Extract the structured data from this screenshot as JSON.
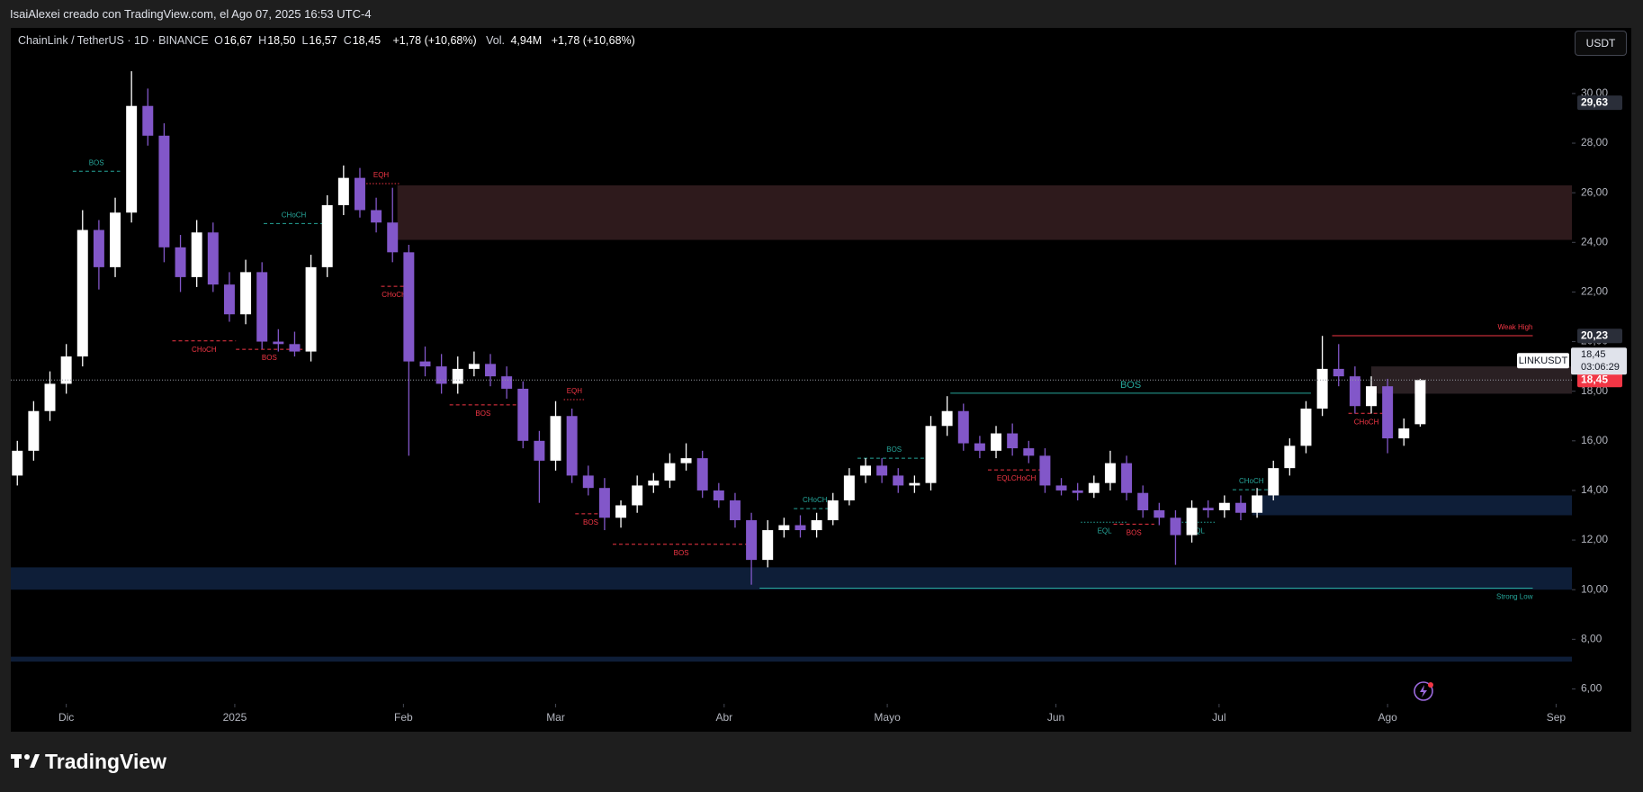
{
  "header": "IsaiAlexei creado con TradingView.com, el Ago 07, 2025 16:53 UTC-4",
  "legend": {
    "symbol": "ChainLink / TetherUS · 1D · BINANCE",
    "ohlc": [
      {
        "k": "O",
        "v": "16,67"
      },
      {
        "k": "H",
        "v": "18,50"
      },
      {
        "k": "L",
        "v": "16,57"
      },
      {
        "k": "C",
        "v": "18,45"
      }
    ],
    "change": "+1,78 (+10,68%)",
    "vol_label": "Vol.",
    "vol": "4,94M",
    "vol_change": "+1,78 (+10,68%)"
  },
  "currency_button": "USDT",
  "brand": "TradingView",
  "chart_data": {
    "type": "candlestick",
    "up_color": "#ffffff",
    "down_color": "#8257c9",
    "open": [
      14.6,
      15.6,
      17.2,
      18.3,
      19.4,
      24.5,
      23.0,
      25.2,
      29.5,
      28.3,
      23.8,
      22.6,
      24.4,
      22.3,
      21.1,
      22.8,
      20.0,
      19.9,
      19.6,
      23.0,
      25.5,
      26.6,
      25.3,
      24.8,
      23.6,
      19.2,
      19.0,
      18.3,
      18.9,
      19.1,
      18.6,
      18.1,
      16.0,
      15.2,
      17.0,
      14.6,
      14.1,
      12.9,
      13.4,
      14.2,
      14.4,
      15.1,
      15.3,
      14.0,
      13.6,
      12.8,
      11.2,
      12.4,
      12.6,
      12.4,
      12.8,
      13.6,
      14.6,
      15.0,
      14.6,
      14.2,
      14.3,
      16.6,
      17.2,
      15.9,
      15.6,
      16.3,
      15.7,
      15.4,
      14.2,
      14.0,
      13.9,
      14.3,
      15.1,
      13.9,
      13.2,
      12.9,
      12.2,
      13.3,
      13.2,
      13.5,
      13.1,
      13.8,
      14.9,
      15.8,
      17.3,
      18.9,
      18.6,
      17.4,
      18.2,
      16.1,
      16.67
    ],
    "high": [
      16.0,
      17.6,
      18.8,
      19.9,
      25.3,
      24.9,
      25.8,
      30.9,
      30.2,
      28.8,
      24.3,
      24.9,
      24.8,
      22.8,
      23.3,
      23.2,
      20.5,
      20.4,
      23.5,
      25.9,
      27.1,
      27.0,
      25.8,
      26.2,
      23.9,
      19.8,
      19.5,
      19.4,
      19.6,
      19.5,
      19.0,
      18.4,
      16.4,
      17.6,
      17.3,
      15.0,
      14.5,
      13.6,
      14.6,
      14.7,
      15.5,
      15.9,
      15.6,
      14.3,
      13.9,
      13.1,
      12.8,
      12.9,
      13.0,
      13.1,
      13.9,
      14.9,
      15.3,
      15.3,
      14.9,
      14.6,
      17.0,
      17.8,
      17.5,
      16.2,
      16.6,
      16.7,
      16.0,
      15.7,
      14.5,
      14.3,
      14.6,
      15.6,
      15.4,
      14.2,
      13.5,
      13.2,
      13.6,
      13.6,
      13.8,
      13.8,
      14.1,
      15.2,
      16.1,
      17.6,
      20.23,
      19.9,
      19.0,
      18.6,
      18.5,
      16.9,
      18.5
    ],
    "low": [
      14.2,
      15.2,
      16.8,
      17.9,
      19.0,
      22.1,
      22.6,
      24.8,
      27.9,
      23.2,
      22.0,
      22.2,
      22.0,
      20.8,
      20.7,
      19.7,
      19.6,
      19.4,
      19.2,
      22.6,
      25.1,
      25.0,
      24.4,
      23.2,
      15.4,
      18.6,
      17.9,
      17.9,
      18.6,
      18.2,
      17.7,
      15.7,
      13.5,
      14.8,
      14.3,
      13.8,
      12.4,
      12.5,
      13.1,
      13.9,
      14.1,
      14.8,
      13.7,
      13.3,
      12.5,
      10.2,
      10.9,
      12.1,
      12.1,
      12.1,
      12.6,
      13.4,
      14.3,
      14.3,
      13.9,
      13.9,
      14.0,
      16.2,
      15.6,
      15.3,
      15.3,
      15.4,
      15.1,
      13.9,
      13.8,
      13.6,
      13.7,
      14.0,
      13.6,
      12.9,
      12.6,
      11.0,
      11.9,
      12.9,
      12.9,
      12.8,
      12.9,
      13.6,
      14.6,
      15.5,
      17.0,
      18.2,
      17.1,
      17.1,
      15.5,
      15.8,
      16.57
    ],
    "close": [
      15.6,
      17.2,
      18.3,
      19.4,
      24.5,
      23.0,
      25.2,
      29.5,
      28.3,
      23.8,
      22.6,
      24.4,
      22.3,
      21.1,
      22.8,
      20.0,
      19.9,
      19.6,
      23.0,
      25.5,
      26.6,
      25.3,
      24.8,
      23.6,
      19.2,
      19.0,
      18.3,
      18.9,
      19.1,
      18.6,
      18.1,
      16.0,
      15.2,
      17.0,
      14.6,
      14.1,
      12.9,
      13.4,
      14.2,
      14.4,
      15.1,
      15.3,
      14.0,
      13.6,
      12.8,
      11.2,
      12.4,
      12.6,
      12.4,
      12.8,
      13.6,
      14.6,
      15.0,
      14.6,
      14.2,
      14.3,
      16.6,
      17.2,
      15.9,
      15.6,
      16.3,
      15.7,
      15.4,
      14.2,
      14.0,
      13.9,
      14.3,
      15.1,
      13.9,
      13.2,
      12.9,
      12.2,
      13.3,
      13.2,
      13.5,
      13.1,
      13.8,
      14.9,
      15.8,
      17.3,
      18.9,
      18.6,
      17.4,
      18.2,
      16.1,
      16.5,
      18.45
    ],
    "xlim": [
      -0.4,
      95.3
    ],
    "xticks": [
      {
        "value": 3,
        "label": "Dic"
      },
      {
        "value": 13.33,
        "label": "2025"
      },
      {
        "value": 23.67,
        "label": "Feb"
      },
      {
        "value": 33,
        "label": "Mar"
      },
      {
        "value": 43.33,
        "label": "Abr"
      },
      {
        "value": 53.33,
        "label": "Mayo"
      },
      {
        "value": 63.67,
        "label": "Jun"
      },
      {
        "value": 73.67,
        "label": "Jul"
      },
      {
        "value": 84,
        "label": "Ago"
      },
      {
        "value": 94.33,
        "label": "Sep"
      }
    ],
    "ylim": [
      5.4,
      32.5
    ],
    "yticks": [
      {
        "value": 6,
        "label": "6,00"
      },
      {
        "value": 8,
        "label": "8,00"
      },
      {
        "value": 10,
        "label": "10,00"
      },
      {
        "value": 12,
        "label": "12,00"
      },
      {
        "value": 14,
        "label": "14,00"
      },
      {
        "value": 16,
        "label": "16,00"
      },
      {
        "value": 18,
        "label": "18,00"
      },
      {
        "value": 20,
        "label": "20,00"
      },
      {
        "value": 22,
        "label": "22,00"
      },
      {
        "value": 24,
        "label": "24,00"
      },
      {
        "value": 26,
        "label": "26,00"
      },
      {
        "value": 28,
        "label": "28,00"
      },
      {
        "value": 30,
        "label": "30,00"
      }
    ],
    "grid": false,
    "zones": [
      {
        "from": 23.3,
        "top": 26.3,
        "bottom": 24.1,
        "color": "#2e1a1c"
      },
      {
        "from": 83,
        "top": 19.0,
        "bottom": 17.9,
        "color": "#2a2023"
      },
      {
        "from": 75.7,
        "top": 13.8,
        "bottom": 13.0,
        "color": "#0e1e38"
      },
      {
        "top": 10.9,
        "bottom": 10.0,
        "color": "#0e1e38"
      },
      {
        "top": 7.3,
        "bottom": 7.1,
        "color": "#0e1e38"
      }
    ],
    "annotations": [
      {
        "text": "BOS",
        "price": 26.87,
        "from": 3.4,
        "to": 6.3,
        "color": "#26a69a",
        "style": "dashed",
        "side": "above"
      },
      {
        "text": "CHoCH",
        "price": 24.76,
        "from": 15.1,
        "to": 18.8,
        "color": "#26a69a",
        "style": "dashed",
        "side": "above"
      },
      {
        "text": "EQH",
        "price": 26.37,
        "from": 21.2,
        "to": 23.4,
        "color": "#f23645",
        "style": "dotted",
        "side": "above"
      },
      {
        "text": "CHoCH",
        "price": 22.23,
        "from": 22.3,
        "to": 23.9,
        "color": "#f23645",
        "style": "dashed",
        "side": "below"
      },
      {
        "text": "CHoCH",
        "price": 20.03,
        "from": 9.5,
        "to": 13.4,
        "color": "#f23645",
        "style": "dashed",
        "side": "below"
      },
      {
        "text": "BOS",
        "price": 19.69,
        "from": 13.4,
        "to": 17.5,
        "color": "#f23645",
        "style": "dashed",
        "side": "below"
      },
      {
        "text": "BOS",
        "price": 17.45,
        "from": 26.5,
        "to": 30.6,
        "color": "#f23645",
        "style": "dashed",
        "side": "below"
      },
      {
        "text": "EQH",
        "price": 17.66,
        "from": 33.5,
        "to": 34.8,
        "color": "#f23645",
        "style": "dotted",
        "side": "above"
      },
      {
        "text": "BOS",
        "price": 13.06,
        "from": 34.2,
        "to": 36.1,
        "color": "#f23645",
        "style": "dashed",
        "side": "below"
      },
      {
        "text": "BOS",
        "price": 11.83,
        "from": 36.5,
        "to": 44.9,
        "color": "#f23645",
        "style": "dashed",
        "side": "below"
      },
      {
        "text": "CHoCH",
        "price": 13.27,
        "from": 47.6,
        "to": 50.2,
        "color": "#26a69a",
        "style": "dashed",
        "side": "above"
      },
      {
        "text": "BOS",
        "price": 15.3,
        "from": 51.5,
        "to": 56,
        "color": "#26a69a",
        "style": "dashed",
        "side": "above"
      },
      {
        "text": "BOS",
        "price": 17.92,
        "from": 57.2,
        "to": 79.3,
        "color": "#26a69a",
        "style": "solid",
        "side": "above"
      },
      {
        "text": "EQLCHoCH",
        "price": 14.83,
        "from": 59.5,
        "to": 63,
        "color": "#f23645",
        "style": "dashed",
        "side": "below"
      },
      {
        "text": "EQL",
        "price": 12.72,
        "from": 65.2,
        "to": 68.1,
        "color": "#26a69a",
        "style": "dotted",
        "side": "below"
      },
      {
        "text": "BOS",
        "price": 12.64,
        "from": 67.2,
        "to": 69.7,
        "color": "#f23645",
        "style": "dashed",
        "side": "below"
      },
      {
        "text": "EQL",
        "price": 12.72,
        "from": 71.2,
        "to": 73.5,
        "color": "#26a69a",
        "style": "dotted",
        "side": "below"
      },
      {
        "text": "CHoCH",
        "price": 14.03,
        "from": 74.5,
        "to": 76.8,
        "color": "#26a69a",
        "style": "dashed",
        "side": "above"
      },
      {
        "text": "CHoCH",
        "price": 17.11,
        "from": 81.6,
        "to": 83.8,
        "color": "#f23645",
        "style": "dashed",
        "side": "below"
      },
      {
        "text": "Weak High",
        "price": 20.24,
        "from": 80.6,
        "to": 92.9,
        "color": "#f23645",
        "style": "solid",
        "side": "above",
        "align": "end"
      },
      {
        "text": "Strong Low",
        "price": 10.06,
        "from": 45.5,
        "to": 92.9,
        "color": "#26a69a",
        "style": "solid",
        "side": "below",
        "align": "end"
      }
    ],
    "price_labels": [
      {
        "value": 29.63,
        "label": "29,63",
        "color": "#2a2e39"
      },
      {
        "value": 20.23,
        "label": "20,23",
        "color": "#2a2e39"
      },
      {
        "value": 18.45,
        "label": "18,45",
        "color": "#f23645"
      }
    ],
    "symbol_tag": {
      "symbol": "LINKUSDT",
      "last": "18,45",
      "countdown": "03:06:29"
    }
  }
}
